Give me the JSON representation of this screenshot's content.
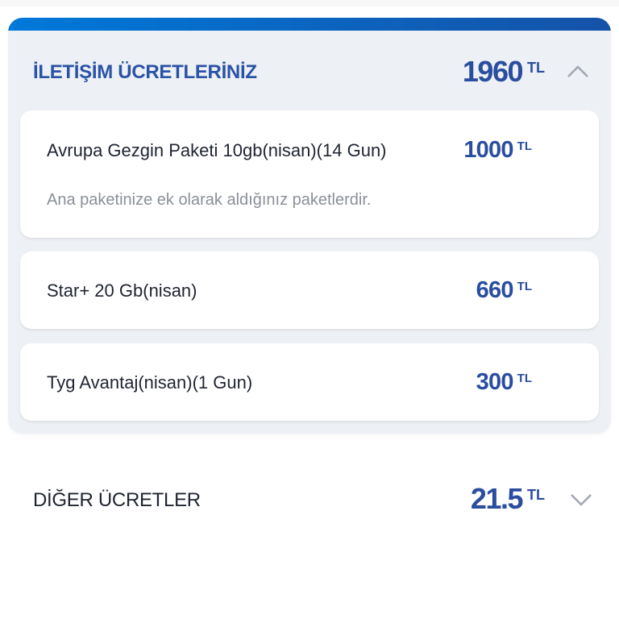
{
  "section_communication": {
    "title": "İLETİŞİM ÜCRETLERİNİZ",
    "total": "1960",
    "currency": "TL",
    "expanded": true,
    "chevron_icon": "chevron-up-icon",
    "items": [
      {
        "name": "Avrupa Gezgin Paketi 10gb(nisan)(14 Gun)",
        "amount": "1000",
        "currency": "TL",
        "description": "Ana paketinize ek olarak aldığınız paketlerdir."
      },
      {
        "name": "Star+ 20 Gb(nisan)",
        "amount": "660",
        "currency": "TL"
      },
      {
        "name": "Tyg Avantaj(nisan)(1 Gun)",
        "amount": "300",
        "currency": "TL"
      }
    ]
  },
  "section_other": {
    "title": "DİĞER ÜCRETLER",
    "total": "21.5",
    "currency": "TL",
    "expanded": false,
    "chevron_icon": "chevron-down-icon"
  },
  "colors": {
    "accent": "#2a4da0",
    "band_start": "#0079da",
    "band_end": "#1552a8",
    "panel_bg": "#edf0f4"
  }
}
